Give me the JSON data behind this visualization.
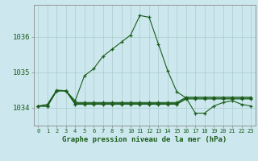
{
  "title": "Graphe pression niveau de la mer (hPa)",
  "background_color": "#cce8ee",
  "grid_color": "#aacccc",
  "line_color": "#1a5c1a",
  "x_labels": [
    "0",
    "1",
    "2",
    "3",
    "4",
    "5",
    "6",
    "7",
    "8",
    "9",
    "10",
    "11",
    "12",
    "13",
    "14",
    "15",
    "16",
    "17",
    "18",
    "19",
    "20",
    "21",
    "22",
    "23"
  ],
  "ylim": [
    1033.5,
    1036.9
  ],
  "yticks": [
    1034,
    1035,
    1036
  ],
  "series1": [
    1034.05,
    1034.1,
    1034.5,
    1034.48,
    1034.2,
    1034.9,
    1035.1,
    1035.45,
    1035.65,
    1035.85,
    1036.05,
    1036.6,
    1036.55,
    1035.8,
    1035.05,
    1034.45,
    1034.28,
    1033.85,
    1033.85,
    1034.05,
    1034.15,
    1034.2,
    1034.1,
    1034.05
  ],
  "series2": [
    1034.05,
    1034.05,
    1034.48,
    1034.48,
    1034.15,
    1034.15,
    1034.15,
    1034.15,
    1034.15,
    1034.15,
    1034.15,
    1034.15,
    1034.15,
    1034.15,
    1034.15,
    1034.15,
    1034.3,
    1034.3,
    1034.3,
    1034.3,
    1034.3,
    1034.3,
    1034.3,
    1034.3
  ],
  "series3": [
    1034.05,
    1034.05,
    1034.48,
    1034.48,
    1034.1,
    1034.1,
    1034.1,
    1034.1,
    1034.1,
    1034.1,
    1034.1,
    1034.1,
    1034.1,
    1034.1,
    1034.1,
    1034.1,
    1034.25,
    1034.25,
    1034.25,
    1034.25,
    1034.25,
    1034.25,
    1034.25,
    1034.25
  ],
  "series4": [
    1034.05,
    1034.05,
    1034.48,
    1034.48,
    1034.12,
    1034.12,
    1034.12,
    1034.12,
    1034.12,
    1034.12,
    1034.12,
    1034.12,
    1034.12,
    1034.12,
    1034.12,
    1034.12,
    1034.27,
    1034.27,
    1034.27,
    1034.27,
    1034.27,
    1034.27,
    1034.27,
    1034.27
  ]
}
